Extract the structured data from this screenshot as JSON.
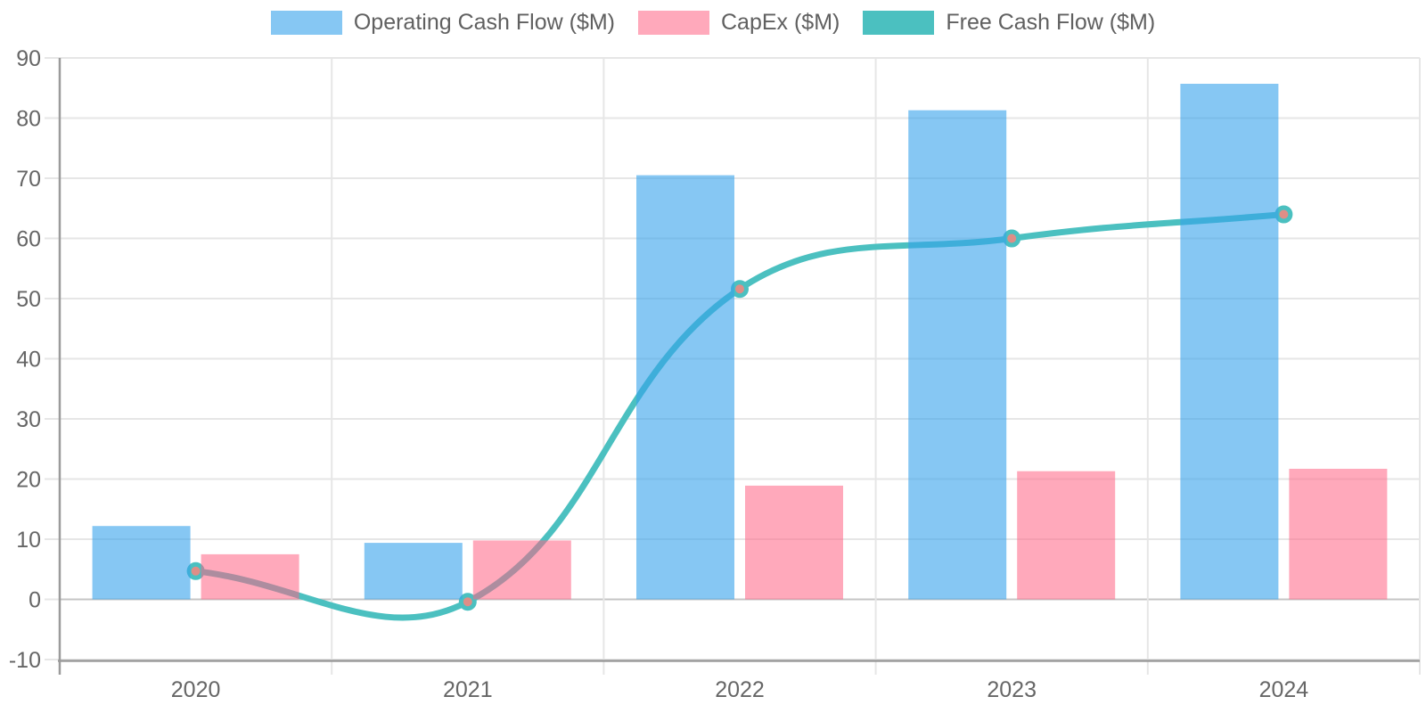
{
  "chart_data": {
    "type": "combo-bar-line",
    "title": "",
    "xlabel": "",
    "ylabel": "",
    "categories": [
      "2020",
      "2021",
      "2022",
      "2023",
      "2024"
    ],
    "series": [
      {
        "name": "Operating Cash Flow ($M)",
        "type": "bar",
        "color": "rgba(54,162,235,0.6)",
        "values": [
          12.2,
          9.4,
          70.5,
          81.3,
          85.7
        ]
      },
      {
        "name": "CapEx ($M)",
        "type": "bar",
        "color": "rgba(255,99,132,0.55)",
        "values": [
          7.5,
          9.8,
          18.9,
          21.3,
          21.7
        ]
      },
      {
        "name": "Free Cash Flow ($M)",
        "type": "line",
        "color": "#4BC0C0",
        "point_fill": "#DE8E87",
        "line_width": 7,
        "point_radius": 10,
        "tension": 0.4,
        "values": [
          4.7,
          -0.4,
          51.6,
          60.0,
          64.0
        ]
      }
    ],
    "ylim": [
      -10,
      90
    ],
    "ytick_step": 10,
    "y_tick_labels": [
      "-10",
      "0",
      "10",
      "20",
      "30",
      "40",
      "50",
      "60",
      "70",
      "80",
      "90"
    ],
    "grid": true,
    "legend_position": "top"
  },
  "theme": {
    "background": "#ffffff",
    "grid_color": "#e6e6e6",
    "zero_line_color": "#c4c4c4",
    "axis_border_color": "#9b9b9b",
    "tick_label_color": "#666666",
    "legend_text_color": "#606060"
  }
}
